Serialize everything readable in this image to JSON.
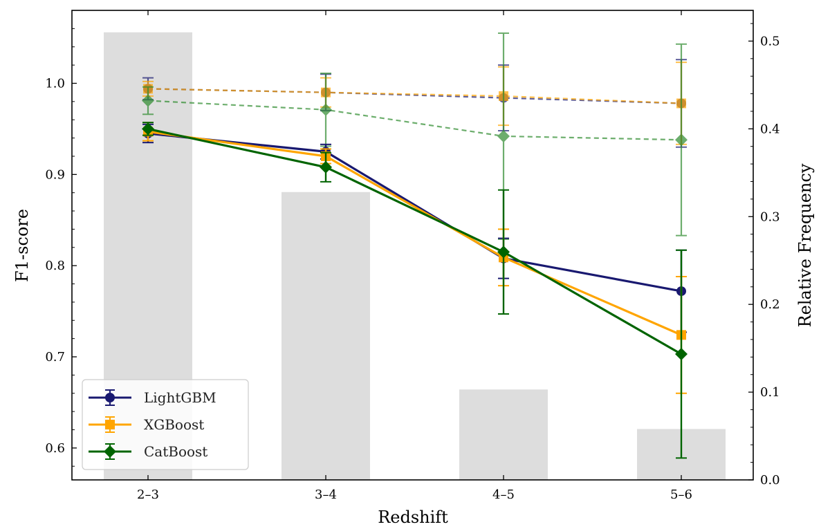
{
  "chart_data": {
    "type": "line",
    "title": "",
    "xlabel": "Redshift",
    "ylabel": "F1-score",
    "ylabel_right": "Relative Frequency",
    "categories": [
      "2–3",
      "3–4",
      "4–5",
      "5–6"
    ],
    "ylim": [
      0.565,
      1.08
    ],
    "yticks": [
      0.6,
      0.7,
      0.8,
      0.9,
      1.0
    ],
    "ytick_labels": [
      "0.6",
      "0.7",
      "0.8",
      "0.9",
      "1.0"
    ],
    "ylim_right": [
      0.0,
      0.535
    ],
    "yticks_right": [
      0.0,
      0.1,
      0.2,
      0.3,
      0.4,
      0.5
    ],
    "ytick_labels_right": [
      "0.0",
      "0.1",
      "0.2",
      "0.3",
      "0.4",
      "0.5"
    ],
    "histogram": {
      "name": "Relative Frequency",
      "color": "#dddddd",
      "values": [
        0.51,
        0.328,
        0.103,
        0.058
      ]
    },
    "legend_position": "lower-left",
    "series": [
      {
        "name": "LightGBM",
        "color": "#191970",
        "marker": "circle",
        "values": [
          0.945,
          0.925,
          0.808,
          0.772
        ],
        "errors": [
          0.01,
          0.008,
          0.022,
          0.045
        ]
      },
      {
        "name": "XGBoost",
        "color": "#ffa500",
        "marker": "square",
        "values": [
          0.947,
          0.92,
          0.809,
          0.724
        ],
        "errors": [
          0.01,
          0.008,
          0.031,
          0.064
        ]
      },
      {
        "name": "CatBoost",
        "color": "#006400",
        "marker": "diamond",
        "values": [
          0.95,
          0.908,
          0.815,
          0.703
        ],
        "errors": [
          0.007,
          0.016,
          0.068,
          0.114
        ]
      }
    ],
    "dashed_series": [
      {
        "name": "LightGBM",
        "color": "#191970",
        "marker": "circle",
        "values": [
          0.994,
          0.99,
          0.984,
          0.978
        ],
        "errors": [
          0.012,
          0.02,
          0.036,
          0.048
        ]
      },
      {
        "name": "XGBoost",
        "color": "#ffa500",
        "marker": "square",
        "values": [
          0.994,
          0.99,
          0.986,
          0.978
        ],
        "errors": [
          0.008,
          0.016,
          0.032,
          0.045
        ]
      },
      {
        "name": "CatBoost",
        "color": "#2e8b2e",
        "marker": "diamond",
        "values": [
          0.981,
          0.971,
          0.942,
          0.938
        ],
        "errors": [
          0.015,
          0.04,
          0.113,
          0.105
        ]
      }
    ]
  }
}
